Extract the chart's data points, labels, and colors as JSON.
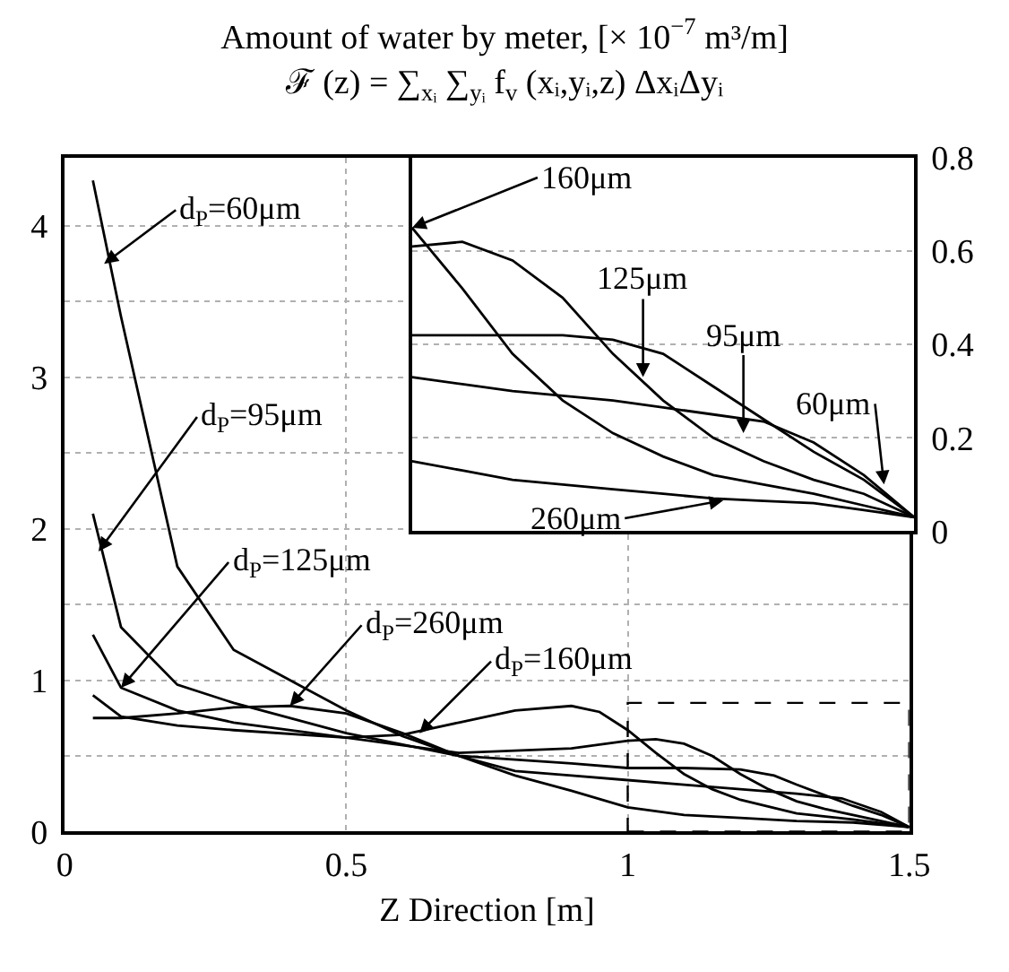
{
  "chart_data": [
    {
      "type": "line",
      "title": "Amount of water by meter, [× 10$^{−7}$ m³/m]",
      "subtitle": "ℱ (z) = ∑$_{xᵢ}$ ∑$_{yᵢ}$ f$_{v}$ (xᵢ,yᵢ,z) ΔxᵢΔyᵢ",
      "xlabel": "Z Direction [m]",
      "xlim": [
        0,
        1.5
      ],
      "ylim": [
        0,
        4.45
      ],
      "xticks": [
        0,
        0.5,
        1,
        1.5
      ],
      "yticks": [
        0,
        {
          "value": 0.5,
          "label": null
        },
        1,
        {
          "value": 1.5,
          "label": null
        },
        2,
        {
          "value": 2.5,
          "label": null
        },
        3,
        {
          "value": 3.5,
          "label": null
        },
        4
      ],
      "grid": true,
      "marker": "none",
      "line_style": "solid",
      "series": [
        {
          "color": "#000000",
          "x": [
            0.05,
            0.1,
            0.2,
            0.3,
            0.4,
            0.5,
            0.6,
            0.7,
            0.8,
            0.9,
            1.0,
            1.1,
            1.2,
            1.3,
            1.38,
            1.45,
            1.5
          ],
          "values": [
            4.3,
            3.4,
            1.75,
            1.2,
            1.0,
            0.8,
            0.63,
            0.5,
            0.4,
            0.37,
            0.34,
            0.31,
            0.28,
            0.25,
            0.22,
            0.13,
            0.03
          ]
        },
        {
          "color": "#000000",
          "x": [
            0.05,
            0.1,
            0.2,
            0.3,
            0.5,
            0.7,
            0.9,
            1.0,
            1.1,
            1.2,
            1.26,
            1.3,
            1.35,
            1.4,
            1.45,
            1.5
          ],
          "values": [
            2.1,
            1.35,
            0.97,
            0.85,
            0.65,
            0.5,
            0.45,
            0.42,
            0.42,
            0.41,
            0.37,
            0.31,
            0.24,
            0.17,
            0.11,
            0.03
          ]
        },
        {
          "color": "#000000",
          "x": [
            0.05,
            0.1,
            0.2,
            0.3,
            0.5,
            0.7,
            0.9,
            1.0,
            1.05,
            1.1,
            1.15,
            1.2,
            1.25,
            1.3,
            1.35,
            1.4,
            1.5
          ],
          "values": [
            1.3,
            0.95,
            0.8,
            0.72,
            0.62,
            0.52,
            0.55,
            0.6,
            0.61,
            0.58,
            0.5,
            0.38,
            0.28,
            0.2,
            0.15,
            0.11,
            0.03
          ]
        },
        {
          "color": "#000000",
          "x": [
            0.05,
            0.1,
            0.2,
            0.3,
            0.5,
            0.6,
            0.7,
            0.8,
            0.9,
            0.95,
            1.0,
            1.05,
            1.1,
            1.15,
            1.2,
            1.3,
            1.4,
            1.5
          ],
          "values": [
            0.9,
            0.76,
            0.7,
            0.67,
            0.62,
            0.64,
            0.72,
            0.8,
            0.83,
            0.79,
            0.67,
            0.52,
            0.38,
            0.28,
            0.21,
            0.12,
            0.08,
            0.03
          ]
        },
        {
          "color": "#000000",
          "x": [
            0.05,
            0.1,
            0.2,
            0.3,
            0.4,
            0.5,
            0.6,
            0.7,
            0.8,
            0.9,
            1.0,
            1.1,
            1.2,
            1.3,
            1.4,
            1.5
          ],
          "values": [
            0.75,
            0.75,
            0.78,
            0.82,
            0.83,
            0.78,
            0.65,
            0.5,
            0.37,
            0.27,
            0.16,
            0.11,
            0.09,
            0.07,
            0.06,
            0.03
          ]
        }
      ],
      "annotations": [
        {
          "text": "d$_{P}$=60μm",
          "x": 0.07,
          "y": 3.75
        },
        {
          "text": "d$_{P}$=95μm",
          "x": 0.06,
          "y": 1.85
        },
        {
          "text": "d$_{P}$=125μm",
          "x": 0.1,
          "y": 0.95
        },
        {
          "text": "d$_{P}$=260μm",
          "x": 0.4,
          "y": 0.83
        },
        {
          "text": "d$_{P}$=160μm",
          "x": 0.63,
          "y": 0.65
        }
      ]
    },
    {
      "type": "line",
      "categories": [
        null,
        null,
        null,
        null,
        null,
        null,
        null,
        null,
        null,
        null,
        null
      ],
      "ylim": [
        0,
        0.8
      ],
      "yticks": [
        0,
        0.2,
        0.4,
        0.6,
        0.8
      ],
      "tick_labels": "y",
      "grid": "y",
      "marker": "none",
      "line_style": "solid",
      "series": [
        {
          "color": "#000000",
          "values": [
            0.33,
            0.315,
            0.3,
            0.29,
            0.28,
            0.265,
            0.25,
            0.235,
            0.19,
            0.12,
            0.03
          ]
        },
        {
          "color": "#000000",
          "values": [
            0.42,
            0.42,
            0.42,
            0.42,
            0.41,
            0.38,
            0.31,
            0.24,
            0.17,
            0.11,
            0.03
          ]
        },
        {
          "color": "#000000",
          "values": [
            0.61,
            0.62,
            0.58,
            0.5,
            0.38,
            0.28,
            0.2,
            0.15,
            0.11,
            0.08,
            0.03
          ]
        },
        {
          "color": "#000000",
          "values": [
            0.65,
            0.52,
            0.38,
            0.28,
            0.21,
            0.16,
            0.12,
            0.1,
            0.08,
            0.055,
            0.03
          ]
        },
        {
          "color": "#000000",
          "values": [
            0.15,
            0.13,
            0.11,
            0.1,
            0.09,
            0.08,
            0.07,
            0.065,
            0.06,
            0.045,
            0.03
          ]
        }
      ],
      "annotations": [
        "160μm",
        "125μm",
        "95μm",
        "60μm",
        "260μm"
      ]
    }
  ]
}
